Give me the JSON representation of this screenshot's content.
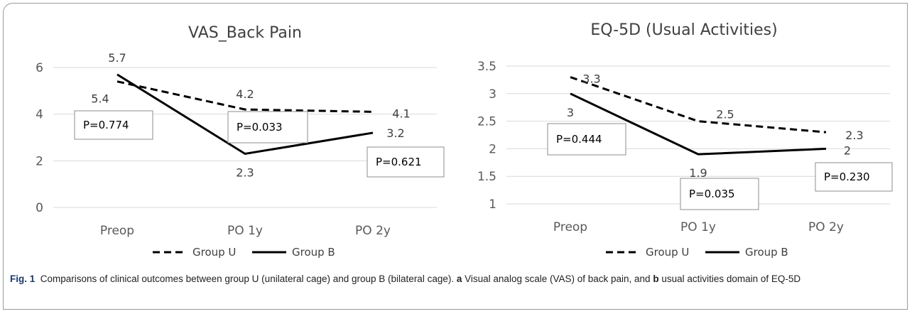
{
  "chart_data": [
    {
      "type": "line",
      "title": "VAS_Back Pain",
      "categories": [
        "Preop",
        "PO 1y",
        "PO 2y"
      ],
      "ylim": [
        0,
        6
      ],
      "yticks": [
        "0",
        "2",
        "4",
        "6"
      ],
      "grid": true,
      "legend_position": "bottom",
      "series": [
        {
          "name": "Group U",
          "style": "dashed",
          "color": "#000000",
          "values": [
            5.4,
            4.2,
            4.1
          ],
          "labels": [
            "5.4",
            "4.2",
            "4.1"
          ]
        },
        {
          "name": "Group B",
          "style": "solid",
          "color": "#000000",
          "values": [
            5.7,
            2.3,
            3.2
          ],
          "labels": [
            "5.7",
            "2.3",
            "3.2"
          ]
        }
      ],
      "annotations": [
        "P=0.774",
        "P=0.033",
        "P=0.621"
      ]
    },
    {
      "type": "line",
      "title": "EQ-5D (Usual Activities)",
      "categories": [
        "Preop",
        "PO 1y",
        "PO 2y"
      ],
      "ylim": [
        1,
        3.5
      ],
      "yticks": [
        "1",
        "1.5",
        "2",
        "2.5",
        "3",
        "3.5"
      ],
      "grid": true,
      "legend_position": "bottom",
      "series": [
        {
          "name": "Group U",
          "style": "dashed",
          "color": "#000000",
          "values": [
            3.3,
            2.5,
            2.3
          ],
          "labels": [
            "3.3",
            "2.5",
            "2.3"
          ]
        },
        {
          "name": "Group B",
          "style": "solid",
          "color": "#000000",
          "values": [
            3,
            1.9,
            2
          ],
          "labels": [
            "3",
            "1.9",
            "2"
          ]
        }
      ],
      "annotations": [
        "P=0.444",
        "P=0.035",
        "P=0.230"
      ]
    }
  ],
  "caption": {
    "fig_label": "Fig. 1",
    "text1": "Comparisons of clinical outcomes between group U (unilateral cage) and group B (bilateral cage).",
    "a": "a",
    "text2": "Visual analog scale (VAS) of back pain, and",
    "b": "b",
    "text3": "usual activities domain of EQ-5D"
  }
}
